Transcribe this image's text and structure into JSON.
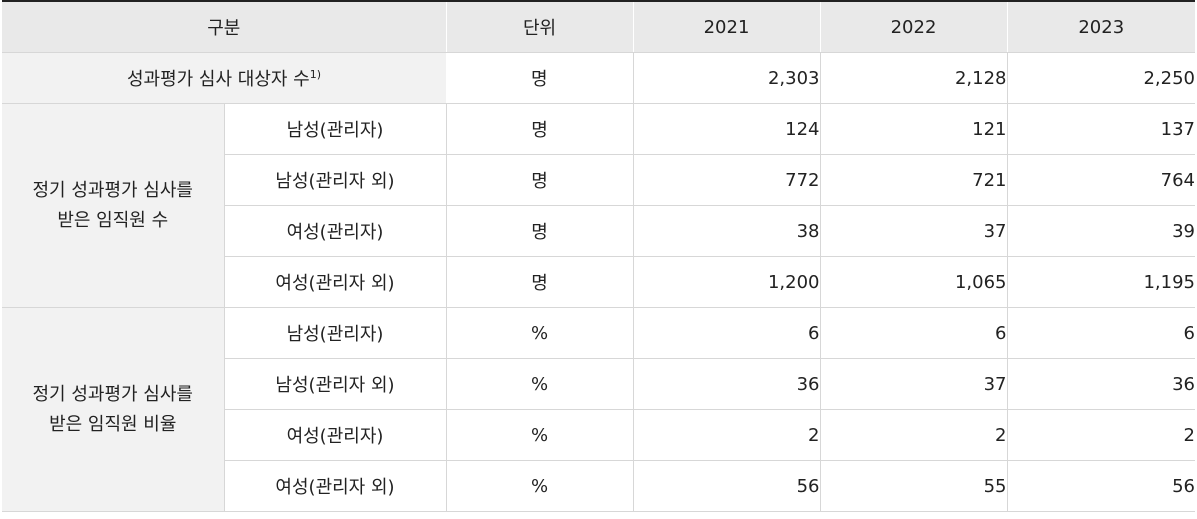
{
  "header": {
    "category": "구분",
    "unit": "단위",
    "year1": "2021",
    "year2": "2022",
    "year3": "2023"
  },
  "summary": {
    "label": "성과평가 심사 대상자 수",
    "footnote": "1)",
    "unit": "명",
    "values": [
      "2,303",
      "2,128",
      "2,250"
    ]
  },
  "count_group": {
    "label_line1": "정기 성과평가 심사를",
    "label_line2": "받은 임직원 수",
    "rows": [
      {
        "sub": "남성(관리자)",
        "unit": "명",
        "values": [
          "124",
          "121",
          "137"
        ]
      },
      {
        "sub": "남성(관리자 외)",
        "unit": "명",
        "values": [
          "772",
          "721",
          "764"
        ]
      },
      {
        "sub": "여성(관리자)",
        "unit": "명",
        "values": [
          "38",
          "37",
          "39"
        ]
      },
      {
        "sub": "여성(관리자 외)",
        "unit": "명",
        "values": [
          "1,200",
          "1,065",
          "1,195"
        ]
      }
    ]
  },
  "ratio_group": {
    "label_line1": "정기 성과평가 심사를",
    "label_line2": "받은 임직원 비율",
    "rows": [
      {
        "sub": "남성(관리자)",
        "unit": "%",
        "values": [
          "6",
          "6",
          "6"
        ]
      },
      {
        "sub": "남성(관리자 외)",
        "unit": "%",
        "values": [
          "36",
          "37",
          "36"
        ]
      },
      {
        "sub": "여성(관리자)",
        "unit": "%",
        "values": [
          "2",
          "2",
          "2"
        ]
      },
      {
        "sub": "여성(관리자 외)",
        "unit": "%",
        "values": [
          "56",
          "55",
          "56"
        ]
      }
    ]
  }
}
